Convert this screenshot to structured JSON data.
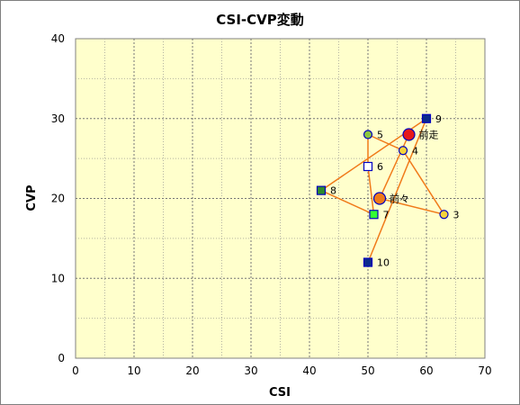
{
  "chart_data": {
    "type": "scatter",
    "title": "CSI-CVP変動",
    "xlabel": "CSI",
    "ylabel": "CVP",
    "xlim": [
      0,
      70
    ],
    "ylim": [
      0,
      40
    ],
    "xticks": [
      "0",
      "10",
      "20",
      "30",
      "40",
      "50",
      "60",
      "70"
    ],
    "yticks": [
      "0",
      "10",
      "20",
      "30",
      "40"
    ],
    "grid": true,
    "plot_bg": "#ffffcc",
    "line_color": "#f07a1a",
    "points": [
      {
        "label": "前走",
        "x": 57,
        "y": 28,
        "shape": "circle",
        "size": "large",
        "fill": "#e61919",
        "stroke": "#0000c0"
      },
      {
        "label": "前々",
        "x": 52,
        "y": 20,
        "shape": "circle",
        "size": "large",
        "fill": "#f07a1a",
        "stroke": "#0000c0"
      },
      {
        "label": "3",
        "x": 63,
        "y": 18,
        "shape": "circle",
        "size": "small",
        "fill": "#f5d33a",
        "stroke": "#0000c0"
      },
      {
        "label": "4",
        "x": 56,
        "y": 26,
        "shape": "circle",
        "size": "small",
        "fill": "#f5d33a",
        "stroke": "#0000c0"
      },
      {
        "label": "5",
        "x": 50,
        "y": 28,
        "shape": "circle",
        "size": "small",
        "fill": "#8cc63f",
        "stroke": "#0000c0"
      },
      {
        "label": "6",
        "x": 50,
        "y": 24,
        "shape": "square",
        "size": "small",
        "fill": "#ffffff",
        "stroke": "#0000c0"
      },
      {
        "label": "7",
        "x": 51,
        "y": 18,
        "shape": "square",
        "size": "small",
        "fill": "#33ff33",
        "stroke": "#0000c0"
      },
      {
        "label": "8",
        "x": 42,
        "y": 21,
        "shape": "square",
        "size": "small",
        "fill": "#2e8b2e",
        "stroke": "#0000c0"
      },
      {
        "label": "9",
        "x": 60,
        "y": 30,
        "shape": "square",
        "size": "small",
        "fill": "#0b2b8c",
        "stroke": "#0000c0"
      },
      {
        "label": "10",
        "x": 50,
        "y": 12,
        "shape": "square",
        "size": "small",
        "fill": "#0b2b8c",
        "stroke": "#0000c0"
      }
    ]
  }
}
